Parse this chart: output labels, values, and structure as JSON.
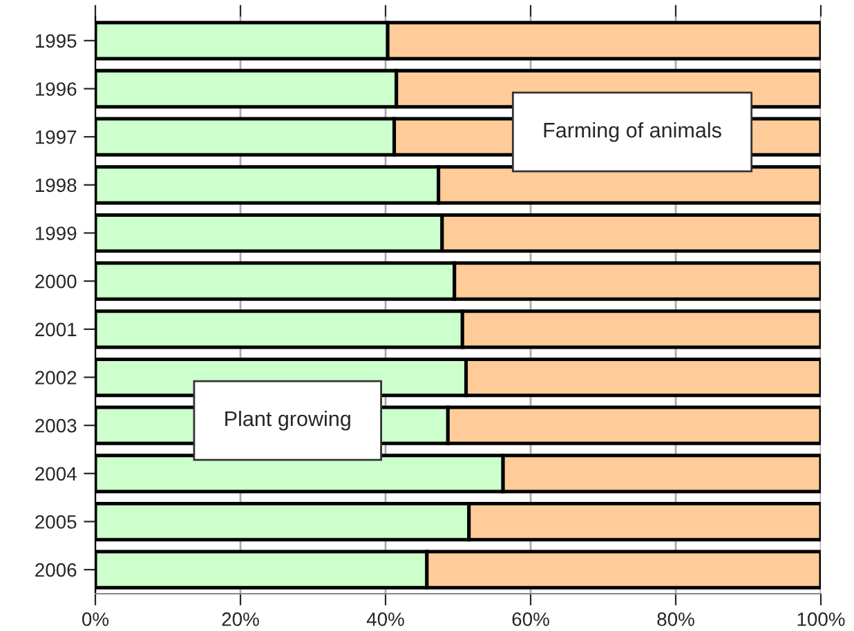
{
  "chart_data": {
    "type": "bar",
    "orientation": "horizontal",
    "stacked": true,
    "categories": [
      "1995",
      "1996",
      "1997",
      "1998",
      "1999",
      "2000",
      "2001",
      "2002",
      "2003",
      "2004",
      "2005",
      "2006"
    ],
    "series": [
      {
        "name": "Plant growing",
        "color": "#ccffcc",
        "values": [
          40.3,
          41.5,
          41.2,
          47.3,
          47.8,
          49.5,
          50.6,
          51.1,
          48.6,
          56.2,
          51.5,
          45.7
        ]
      },
      {
        "name": "Farming of animals",
        "color": "#ffcc99",
        "values": [
          59.7,
          58.5,
          58.8,
          52.7,
          52.2,
          50.5,
          49.4,
          48.9,
          51.4,
          43.8,
          48.5,
          54.3
        ]
      }
    ],
    "xlim": [
      0,
      100
    ],
    "xticks": [
      {
        "value": 0,
        "label": "0%"
      },
      {
        "value": 20,
        "label": "20%"
      },
      {
        "value": 40,
        "label": "40%"
      },
      {
        "value": 60,
        "label": "60%"
      },
      {
        "value": 80,
        "label": "80%"
      },
      {
        "value": 100,
        "label": "100%"
      }
    ],
    "grid": "x"
  }
}
